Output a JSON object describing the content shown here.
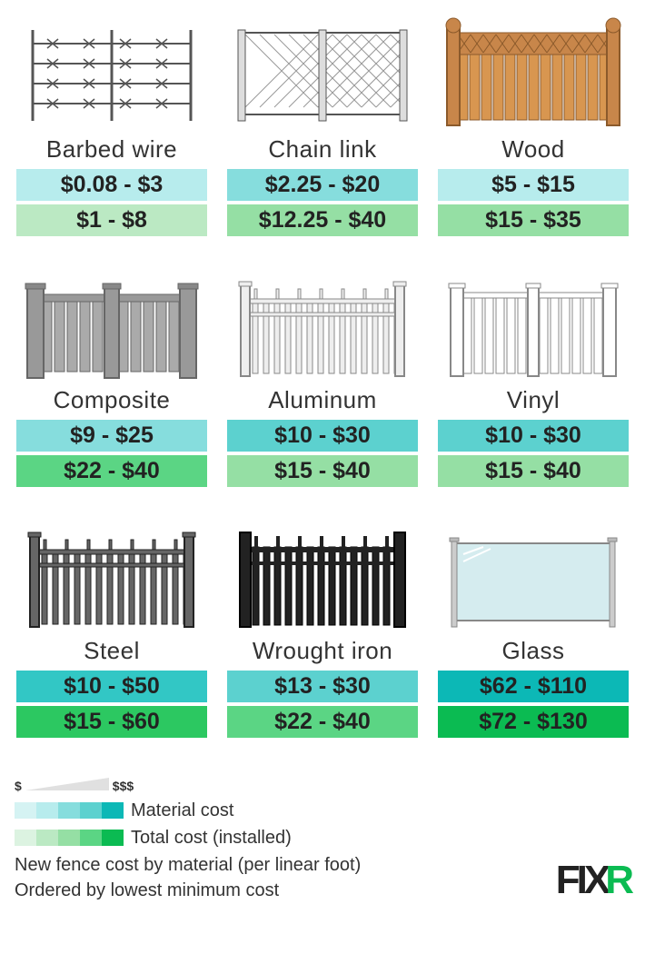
{
  "fences": [
    {
      "name": "Barbed wire",
      "material": "$0.08 - $3",
      "total": "$1 - $8",
      "mbg": "#b7eced",
      "tbg": "#bbe9c3",
      "svg": "barbed"
    },
    {
      "name": "Chain link",
      "material": "$2.25 - $20",
      "total": "$12.25 - $40",
      "mbg": "#86dddd",
      "tbg": "#95dfa4",
      "svg": "chain"
    },
    {
      "name": "Wood",
      "material": "$5 - $15",
      "total": "$15 - $35",
      "mbg": "#b7eced",
      "tbg": "#95dfa4",
      "svg": "wood"
    },
    {
      "name": "Composite",
      "material": "$9 - $25",
      "total": "$22 - $40",
      "mbg": "#86dddd",
      "tbg": "#5bd584",
      "svg": "composite"
    },
    {
      "name": "Aluminum",
      "material": "$10 - $30",
      "total": "$15 - $40",
      "mbg": "#5cd1cf",
      "tbg": "#95dfa4",
      "svg": "aluminum"
    },
    {
      "name": "Vinyl",
      "material": "$10 - $30",
      "total": "$15 - $40",
      "mbg": "#5cd1cf",
      "tbg": "#95dfa4",
      "svg": "vinyl"
    },
    {
      "name": "Steel",
      "material": "$10 - $50",
      "total": "$15 - $60",
      "mbg": "#32c7c5",
      "tbg": "#2cc861",
      "svg": "steel"
    },
    {
      "name": "Wrought iron",
      "material": "$13 - $30",
      "total": "$22 - $40",
      "mbg": "#5cd1cf",
      "tbg": "#5bd584",
      "svg": "iron"
    },
    {
      "name": "Glass",
      "material": "$62 - $110",
      "total": "$72 - $130",
      "mbg": "#0cb8b6",
      "tbg": "#0bbb52",
      "svg": "glass"
    }
  ],
  "legend": {
    "low": "$",
    "high": "$$$",
    "material_label": "Material cost",
    "total_label": "Total cost (installed)",
    "material_swatches": [
      "#d5f3f3",
      "#b7eced",
      "#86dddd",
      "#5cd1cf",
      "#0cb8b6"
    ],
    "total_swatches": [
      "#dcf3e1",
      "#bbe9c3",
      "#95dfa4",
      "#5bd584",
      "#0bbb52"
    ]
  },
  "footer": {
    "line1": "New fence cost by material (per linear foot)",
    "line2": "Ordered by lowest minimum cost",
    "brand1": "FIX",
    "brand2": "R"
  }
}
